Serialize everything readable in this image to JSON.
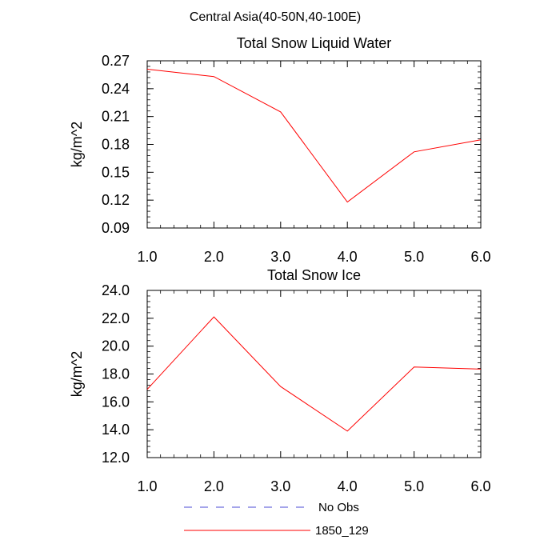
{
  "figure_title": "Central Asia(40-50N,40-100E)",
  "legend": [
    {
      "label": "No Obs",
      "color": "#4b4bd6",
      "style": "dashed"
    },
    {
      "label": "1850_129",
      "color": "#ff0000",
      "style": "solid"
    }
  ],
  "chart_data": [
    {
      "type": "line",
      "title": "Total Snow Liquid Water",
      "xlabel": "",
      "ylabel": "kg/m^2",
      "xlim": [
        1,
        6
      ],
      "ylim": [
        0.09,
        0.27
      ],
      "x_ticks": [
        1,
        2,
        3,
        4,
        5,
        6
      ],
      "x_tick_labels": [
        "1.0",
        "2.0",
        "3.0",
        "4.0",
        "5.0",
        "6.0"
      ],
      "y_ticks": [
        0.09,
        0.12,
        0.15,
        0.18,
        0.21,
        0.24,
        0.27
      ],
      "y_tick_labels": [
        "0.09",
        "0.12",
        "0.15",
        "0.18",
        "0.21",
        "0.24",
        "0.27"
      ],
      "y_minor_step": 0.006,
      "series": [
        {
          "name": "1850_129",
          "color": "#ff0000",
          "x": [
            1,
            2,
            3,
            4,
            5,
            6
          ],
          "values": [
            0.261,
            0.253,
            0.215,
            0.118,
            0.172,
            0.185
          ]
        }
      ]
    },
    {
      "type": "line",
      "title": "Total Snow Ice",
      "xlabel": "",
      "ylabel": "kg/m^2",
      "xlim": [
        1,
        6
      ],
      "ylim": [
        12,
        24
      ],
      "x_ticks": [
        1,
        2,
        3,
        4,
        5,
        6
      ],
      "x_tick_labels": [
        "1.0",
        "2.0",
        "3.0",
        "4.0",
        "5.0",
        "6.0"
      ],
      "y_ticks": [
        12,
        14,
        16,
        18,
        20,
        22,
        24
      ],
      "y_tick_labels": [
        "12.0",
        "14.0",
        "16.0",
        "18.0",
        "20.0",
        "22.0",
        "24.0"
      ],
      "y_minor_step": 0.4,
      "series": [
        {
          "name": "1850_129",
          "color": "#ff0000",
          "x": [
            1,
            2,
            3,
            4,
            5,
            6
          ],
          "values": [
            16.9,
            22.1,
            17.1,
            13.9,
            18.5,
            18.35
          ]
        }
      ]
    }
  ]
}
